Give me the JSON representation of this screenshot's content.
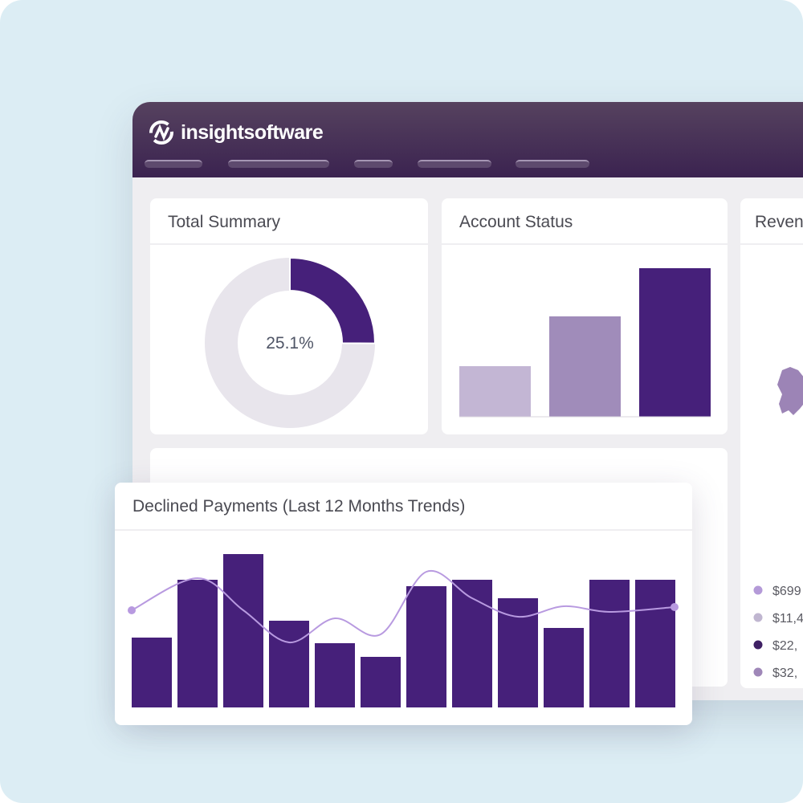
{
  "header": {
    "brand": "insightsoftware"
  },
  "cards": {
    "total_summary": {
      "title": "Total Summary",
      "chart_data": {
        "type": "donut",
        "value": 25.1,
        "value_label": "25.1%",
        "color": "#46207a",
        "track_color": "#e8e5ec"
      }
    },
    "account_status": {
      "title": "Account Status",
      "chart_data": {
        "type": "bar",
        "values": [
          63,
          125,
          185
        ],
        "colors": [
          "#c3b6d4",
          "#a08cba",
          "#46207a"
        ]
      }
    },
    "revenue": {
      "title": "Reven",
      "legend": [
        {
          "label": "$699",
          "color": "#b49ad8"
        },
        {
          "label": "$11,4",
          "color": "#c0b6d0"
        },
        {
          "label": "$22,",
          "color": "#3f2064"
        },
        {
          "label": "$32,",
          "color": "#9f87b8"
        }
      ]
    },
    "declined_payments": {
      "title": "Declined Payments (Last 12 Months Trends)",
      "chart_data": {
        "type": "bar_line",
        "series": [
          {
            "type": "bar",
            "color": "#46207a",
            "values": [
              87,
              159,
              191,
              108,
              80,
              63,
              151,
              159,
              136,
              99,
              159,
              159
            ]
          },
          {
            "type": "line",
            "color": "#b89ae0",
            "values": [
              121,
              161,
              121,
              81,
              111,
              91,
              169,
              136,
              113,
              126,
              119,
              125
            ]
          }
        ]
      }
    }
  }
}
